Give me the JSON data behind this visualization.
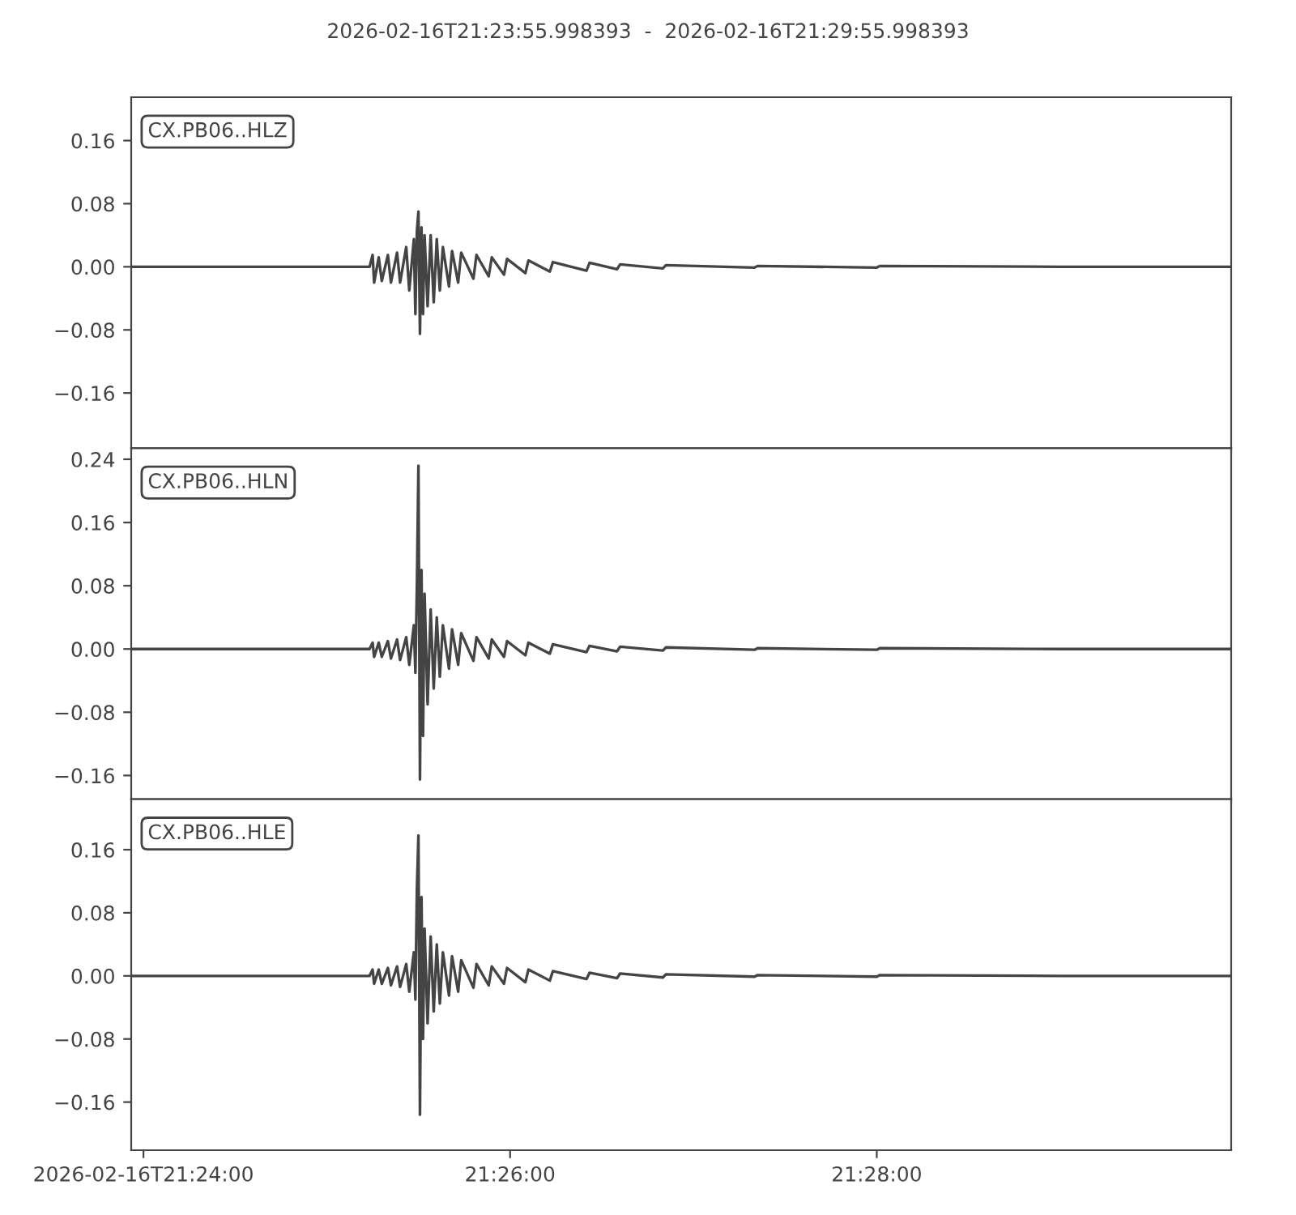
{
  "chart_data": [
    {
      "type": "line",
      "title": "2026-02-16T21:23:55.998393  -  2026-02-16T21:29:55.998393",
      "annotations": [
        "CX.PB06..HLZ"
      ],
      "x": [
        "2026-02-16T21:23:55.998393",
        "2026-02-16T21:25:14",
        "2026-02-16T21:25:15",
        "2026-02-16T21:25:15.5",
        "2026-02-16T21:25:17",
        "2026-02-16T21:25:18",
        "2026-02-16T21:25:20",
        "2026-02-16T21:25:21",
        "2026-02-16T21:25:23",
        "2026-02-16T21:25:24",
        "2026-02-16T21:25:26",
        "2026-02-16T21:25:27",
        "2026-02-16T21:25:28.5",
        "2026-02-16T21:25:29",
        "2026-02-16T21:25:29.5",
        "2026-02-16T21:25:30",
        "2026-02-16T21:25:30.5",
        "2026-02-16T21:25:31",
        "2026-02-16T21:25:31.5",
        "2026-02-16T21:25:32",
        "2026-02-16T21:25:33",
        "2026-02-16T21:25:34",
        "2026-02-16T21:25:35",
        "2026-02-16T21:25:36",
        "2026-02-16T21:25:37",
        "2026-02-16T21:25:38",
        "2026-02-16T21:25:40",
        "2026-02-16T21:25:41",
        "2026-02-16T21:25:43",
        "2026-02-16T21:25:44",
        "2026-02-16T21:25:48",
        "2026-02-16T21:25:49",
        "2026-02-16T21:25:53",
        "2026-02-16T21:25:54",
        "2026-02-16T21:25:58",
        "2026-02-16T21:25:59",
        "2026-02-16T21:26:05",
        "2026-02-16T21:26:06",
        "2026-02-16T21:26:13",
        "2026-02-16T21:26:14",
        "2026-02-16T21:26:25",
        "2026-02-16T21:26:26",
        "2026-02-16T21:26:35",
        "2026-02-16T21:26:36",
        "2026-02-16T21:26:50",
        "2026-02-16T21:26:51",
        "2026-02-16T21:27:20",
        "2026-02-16T21:27:21",
        "2026-02-16T21:28:00",
        "2026-02-16T21:28:01",
        "2026-02-16T21:29:00",
        "2026-02-16T21:29:55.998393"
      ],
      "series": [
        {
          "color": "#444444",
          "values": [
            0,
            0,
            0.015,
            -0.02,
            0.012,
            -0.018,
            0.015,
            -0.02,
            0.018,
            -0.02,
            0.025,
            -0.03,
            0.035,
            -0.06,
            0.045,
            0.07,
            -0.085,
            0.05,
            -0.06,
            0.04,
            -0.05,
            0.04,
            -0.045,
            0.035,
            -0.03,
            0.025,
            -0.025,
            0.02,
            -0.02,
            0.018,
            -0.015,
            0.015,
            -0.012,
            0.012,
            -0.01,
            0.01,
            -0.008,
            0.008,
            -0.006,
            0.006,
            -0.005,
            0.005,
            -0.003,
            0.003,
            -0.002,
            0.002,
            -0.001,
            0.001,
            -0.001,
            0.001,
            0,
            0
          ]
        }
      ],
      "xlim": [
        "2026-02-16T21:23:55.998393",
        "2026-02-16T21:29:55.998393"
      ],
      "ylim": [
        -0.23,
        0.215
      ],
      "yticks": [
        {
          "value": -0.16,
          "label": "−0.16"
        },
        {
          "value": -0.08,
          "label": "−0.08"
        },
        {
          "value": 0,
          "label": "0.00"
        },
        {
          "value": 0.08,
          "label": "0.08"
        },
        {
          "value": 0.16,
          "label": "0.16"
        }
      ],
      "tick_labels": "y"
    },
    {
      "type": "line",
      "annotations": [
        "CX.PB06..HLN"
      ],
      "x": [
        "2026-02-16T21:23:55.998393",
        "2026-02-16T21:25:14",
        "2026-02-16T21:25:15",
        "2026-02-16T21:25:15.5",
        "2026-02-16T21:25:17",
        "2026-02-16T21:25:18",
        "2026-02-16T21:25:20",
        "2026-02-16T21:25:21",
        "2026-02-16T21:25:23",
        "2026-02-16T21:25:24",
        "2026-02-16T21:25:26",
        "2026-02-16T21:25:27",
        "2026-02-16T21:25:28.5",
        "2026-02-16T21:25:29",
        "2026-02-16T21:25:29.5",
        "2026-02-16T21:25:30",
        "2026-02-16T21:25:30.5",
        "2026-02-16T21:25:31",
        "2026-02-16T21:25:31.5",
        "2026-02-16T21:25:32",
        "2026-02-16T21:25:33",
        "2026-02-16T21:25:34",
        "2026-02-16T21:25:35",
        "2026-02-16T21:25:36",
        "2026-02-16T21:25:37",
        "2026-02-16T21:25:38",
        "2026-02-16T21:25:40",
        "2026-02-16T21:25:41",
        "2026-02-16T21:25:43",
        "2026-02-16T21:25:44",
        "2026-02-16T21:25:48",
        "2026-02-16T21:25:49",
        "2026-02-16T21:25:53",
        "2026-02-16T21:25:54",
        "2026-02-16T21:25:58",
        "2026-02-16T21:25:59",
        "2026-02-16T21:26:05",
        "2026-02-16T21:26:06",
        "2026-02-16T21:26:13",
        "2026-02-16T21:26:14",
        "2026-02-16T21:26:25",
        "2026-02-16T21:26:26",
        "2026-02-16T21:26:35",
        "2026-02-16T21:26:36",
        "2026-02-16T21:26:50",
        "2026-02-16T21:26:51",
        "2026-02-16T21:27:20",
        "2026-02-16T21:27:21",
        "2026-02-16T21:28:00",
        "2026-02-16T21:28:01",
        "2026-02-16T21:29:00",
        "2026-02-16T21:29:55.998393"
      ],
      "series": [
        {
          "color": "#444444",
          "values": [
            0,
            0,
            0.008,
            -0.01,
            0.008,
            -0.01,
            0.01,
            -0.012,
            0.012,
            -0.014,
            0.015,
            -0.02,
            0.03,
            -0.03,
            0.08,
            0.232,
            -0.165,
            0.1,
            -0.11,
            0.07,
            -0.07,
            0.05,
            -0.05,
            0.04,
            -0.035,
            0.03,
            -0.025,
            0.025,
            -0.02,
            0.02,
            -0.015,
            0.015,
            -0.012,
            0.012,
            -0.01,
            0.01,
            -0.008,
            0.008,
            -0.006,
            0.006,
            -0.004,
            0.004,
            -0.003,
            0.003,
            -0.002,
            0.002,
            -0.001,
            0.001,
            -0.001,
            0.001,
            0,
            0
          ]
        }
      ],
      "xlim": [
        "2026-02-16T21:23:55.998393",
        "2026-02-16T21:29:55.998393"
      ],
      "ylim": [
        -0.19,
        0.254
      ],
      "yticks": [
        {
          "value": -0.16,
          "label": "−0.16"
        },
        {
          "value": -0.08,
          "label": "−0.08"
        },
        {
          "value": 0,
          "label": "0.00"
        },
        {
          "value": 0.08,
          "label": "0.08"
        },
        {
          "value": 0.16,
          "label": "0.16"
        },
        {
          "value": 0.24,
          "label": "0.24"
        }
      ],
      "tick_labels": "y"
    },
    {
      "type": "line",
      "annotations": [
        "CX.PB06..HLE"
      ],
      "x": [
        "2026-02-16T21:23:55.998393",
        "2026-02-16T21:25:14",
        "2026-02-16T21:25:15",
        "2026-02-16T21:25:15.5",
        "2026-02-16T21:25:17",
        "2026-02-16T21:25:18",
        "2026-02-16T21:25:20",
        "2026-02-16T21:25:21",
        "2026-02-16T21:25:23",
        "2026-02-16T21:25:24",
        "2026-02-16T21:25:26",
        "2026-02-16T21:25:27",
        "2026-02-16T21:25:28.5",
        "2026-02-16T21:25:29",
        "2026-02-16T21:25:29.5",
        "2026-02-16T21:25:30",
        "2026-02-16T21:25:30.5",
        "2026-02-16T21:25:31",
        "2026-02-16T21:25:31.5",
        "2026-02-16T21:25:32",
        "2026-02-16T21:25:33",
        "2026-02-16T21:25:34",
        "2026-02-16T21:25:35",
        "2026-02-16T21:25:36",
        "2026-02-16T21:25:37",
        "2026-02-16T21:25:38",
        "2026-02-16T21:25:40",
        "2026-02-16T21:25:41",
        "2026-02-16T21:25:43",
        "2026-02-16T21:25:44",
        "2026-02-16T21:25:48",
        "2026-02-16T21:25:49",
        "2026-02-16T21:25:53",
        "2026-02-16T21:25:54",
        "2026-02-16T21:25:58",
        "2026-02-16T21:25:59",
        "2026-02-16T21:26:05",
        "2026-02-16T21:26:06",
        "2026-02-16T21:26:13",
        "2026-02-16T21:26:14",
        "2026-02-16T21:26:25",
        "2026-02-16T21:26:26",
        "2026-02-16T21:26:35",
        "2026-02-16T21:26:36",
        "2026-02-16T21:26:50",
        "2026-02-16T21:26:51",
        "2026-02-16T21:27:20",
        "2026-02-16T21:27:21",
        "2026-02-16T21:28:00",
        "2026-02-16T21:28:01",
        "2026-02-16T21:29:00",
        "2026-02-16T21:29:55.998393"
      ],
      "series": [
        {
          "color": "#444444",
          "values": [
            0,
            0,
            0.008,
            -0.01,
            0.008,
            -0.01,
            0.01,
            -0.012,
            0.012,
            -0.014,
            0.015,
            -0.02,
            0.03,
            -0.03,
            0.11,
            0.178,
            -0.176,
            0.1,
            -0.08,
            0.06,
            -0.06,
            0.05,
            -0.045,
            0.04,
            -0.035,
            0.03,
            -0.025,
            0.025,
            -0.02,
            0.02,
            -0.015,
            0.015,
            -0.012,
            0.012,
            -0.01,
            0.01,
            -0.008,
            0.008,
            -0.006,
            0.006,
            -0.004,
            0.004,
            -0.003,
            0.003,
            -0.002,
            0.002,
            -0.001,
            0.001,
            -0.001,
            0.001,
            0,
            0
          ]
        }
      ],
      "xlim": [
        "2026-02-16T21:23:55.998393",
        "2026-02-16T21:29:55.998393"
      ],
      "xticks": [
        {
          "value": "2026-02-16T21:24:00",
          "label": "2026-02-16T21:24:00"
        },
        {
          "value": "2026-02-16T21:26:00",
          "label": "21:26:00"
        },
        {
          "value": "2026-02-16T21:28:00",
          "label": "21:28:00"
        }
      ],
      "ylim": [
        -0.221,
        0.224
      ],
      "yticks": [
        {
          "value": -0.16,
          "label": "−0.16"
        },
        {
          "value": -0.08,
          "label": "−0.08"
        },
        {
          "value": 0,
          "label": "0.00"
        },
        {
          "value": 0.08,
          "label": "0.08"
        },
        {
          "value": 0.16,
          "label": "0.16"
        }
      ],
      "line_style": "solid"
    }
  ]
}
